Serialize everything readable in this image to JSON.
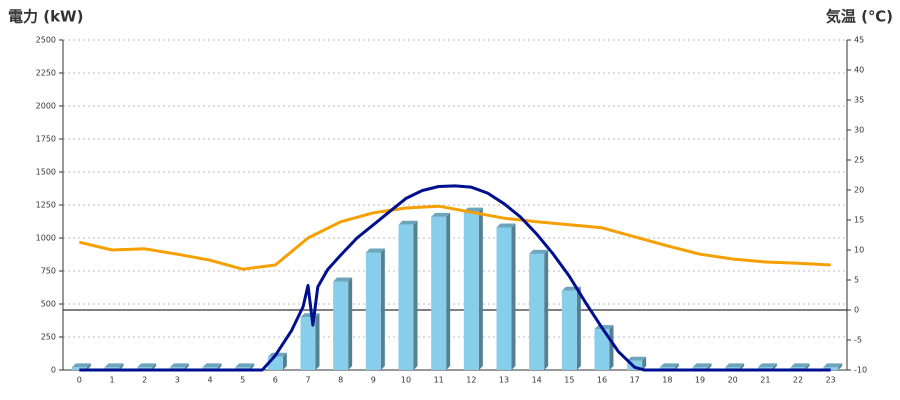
{
  "chart_data": {
    "type": "bar",
    "title": "電力 (kW)",
    "y2_title": "気温 (℃)",
    "title_color": "#1a6fc0",
    "y2_title_color": "#f08a00",
    "categories": [
      "0",
      "1",
      "2",
      "3",
      "4",
      "5",
      "6",
      "7",
      "8",
      "9",
      "10",
      "11",
      "12",
      "13",
      "14",
      "15",
      "16",
      "17",
      "18",
      "19",
      "20",
      "21",
      "22",
      "23"
    ],
    "ylim": [
      0,
      2500
    ],
    "yticks": [
      0,
      250,
      500,
      750,
      1000,
      1250,
      1500,
      1750,
      2000,
      2250,
      2500
    ],
    "y2lim": [
      -10,
      45
    ],
    "y2ticks": [
      -10,
      -5,
      0,
      5,
      10,
      15,
      20,
      25,
      30,
      35,
      40,
      45
    ],
    "grid": true,
    "series": [
      {
        "type": "bar",
        "color": "#87ceeb",
        "values": [
          20,
          20,
          20,
          20,
          20,
          20,
          100,
          400,
          670,
          890,
          1100,
          1160,
          1200,
          1080,
          880,
          600,
          310,
          70,
          20,
          20,
          20,
          20,
          20,
          20
        ]
      },
      {
        "type": "line",
        "axis": "y2",
        "color": "#f5a000",
        "values": [
          11.3,
          10,
          10.2,
          9.3,
          8.3,
          6.8,
          7.5,
          12,
          14.7,
          16.2,
          17,
          17.3,
          16.3,
          15.3,
          14.7,
          14.2,
          13.7,
          12.2,
          10.7,
          9.3,
          8.5,
          8,
          7.8,
          7.5
        ]
      },
      {
        "type": "line",
        "color": "#000f8f",
        "x": [
          0,
          5.6,
          6,
          6.5,
          6.85,
          7,
          7.15,
          7.3,
          7.6,
          8,
          8.5,
          9,
          9.5,
          10,
          10.5,
          11,
          11.5,
          12,
          12.5,
          13,
          13.5,
          14,
          14.5,
          15,
          15.5,
          16,
          16.5,
          17,
          17.3,
          23
        ],
        "values": [
          0,
          0,
          110,
          300,
          480,
          640,
          340,
          630,
          760,
          870,
          1000,
          1100,
          1200,
          1300,
          1360,
          1390,
          1395,
          1385,
          1340,
          1260,
          1160,
          1030,
          880,
          710,
          510,
          320,
          140,
          20,
          0,
          0
        ]
      }
    ]
  }
}
